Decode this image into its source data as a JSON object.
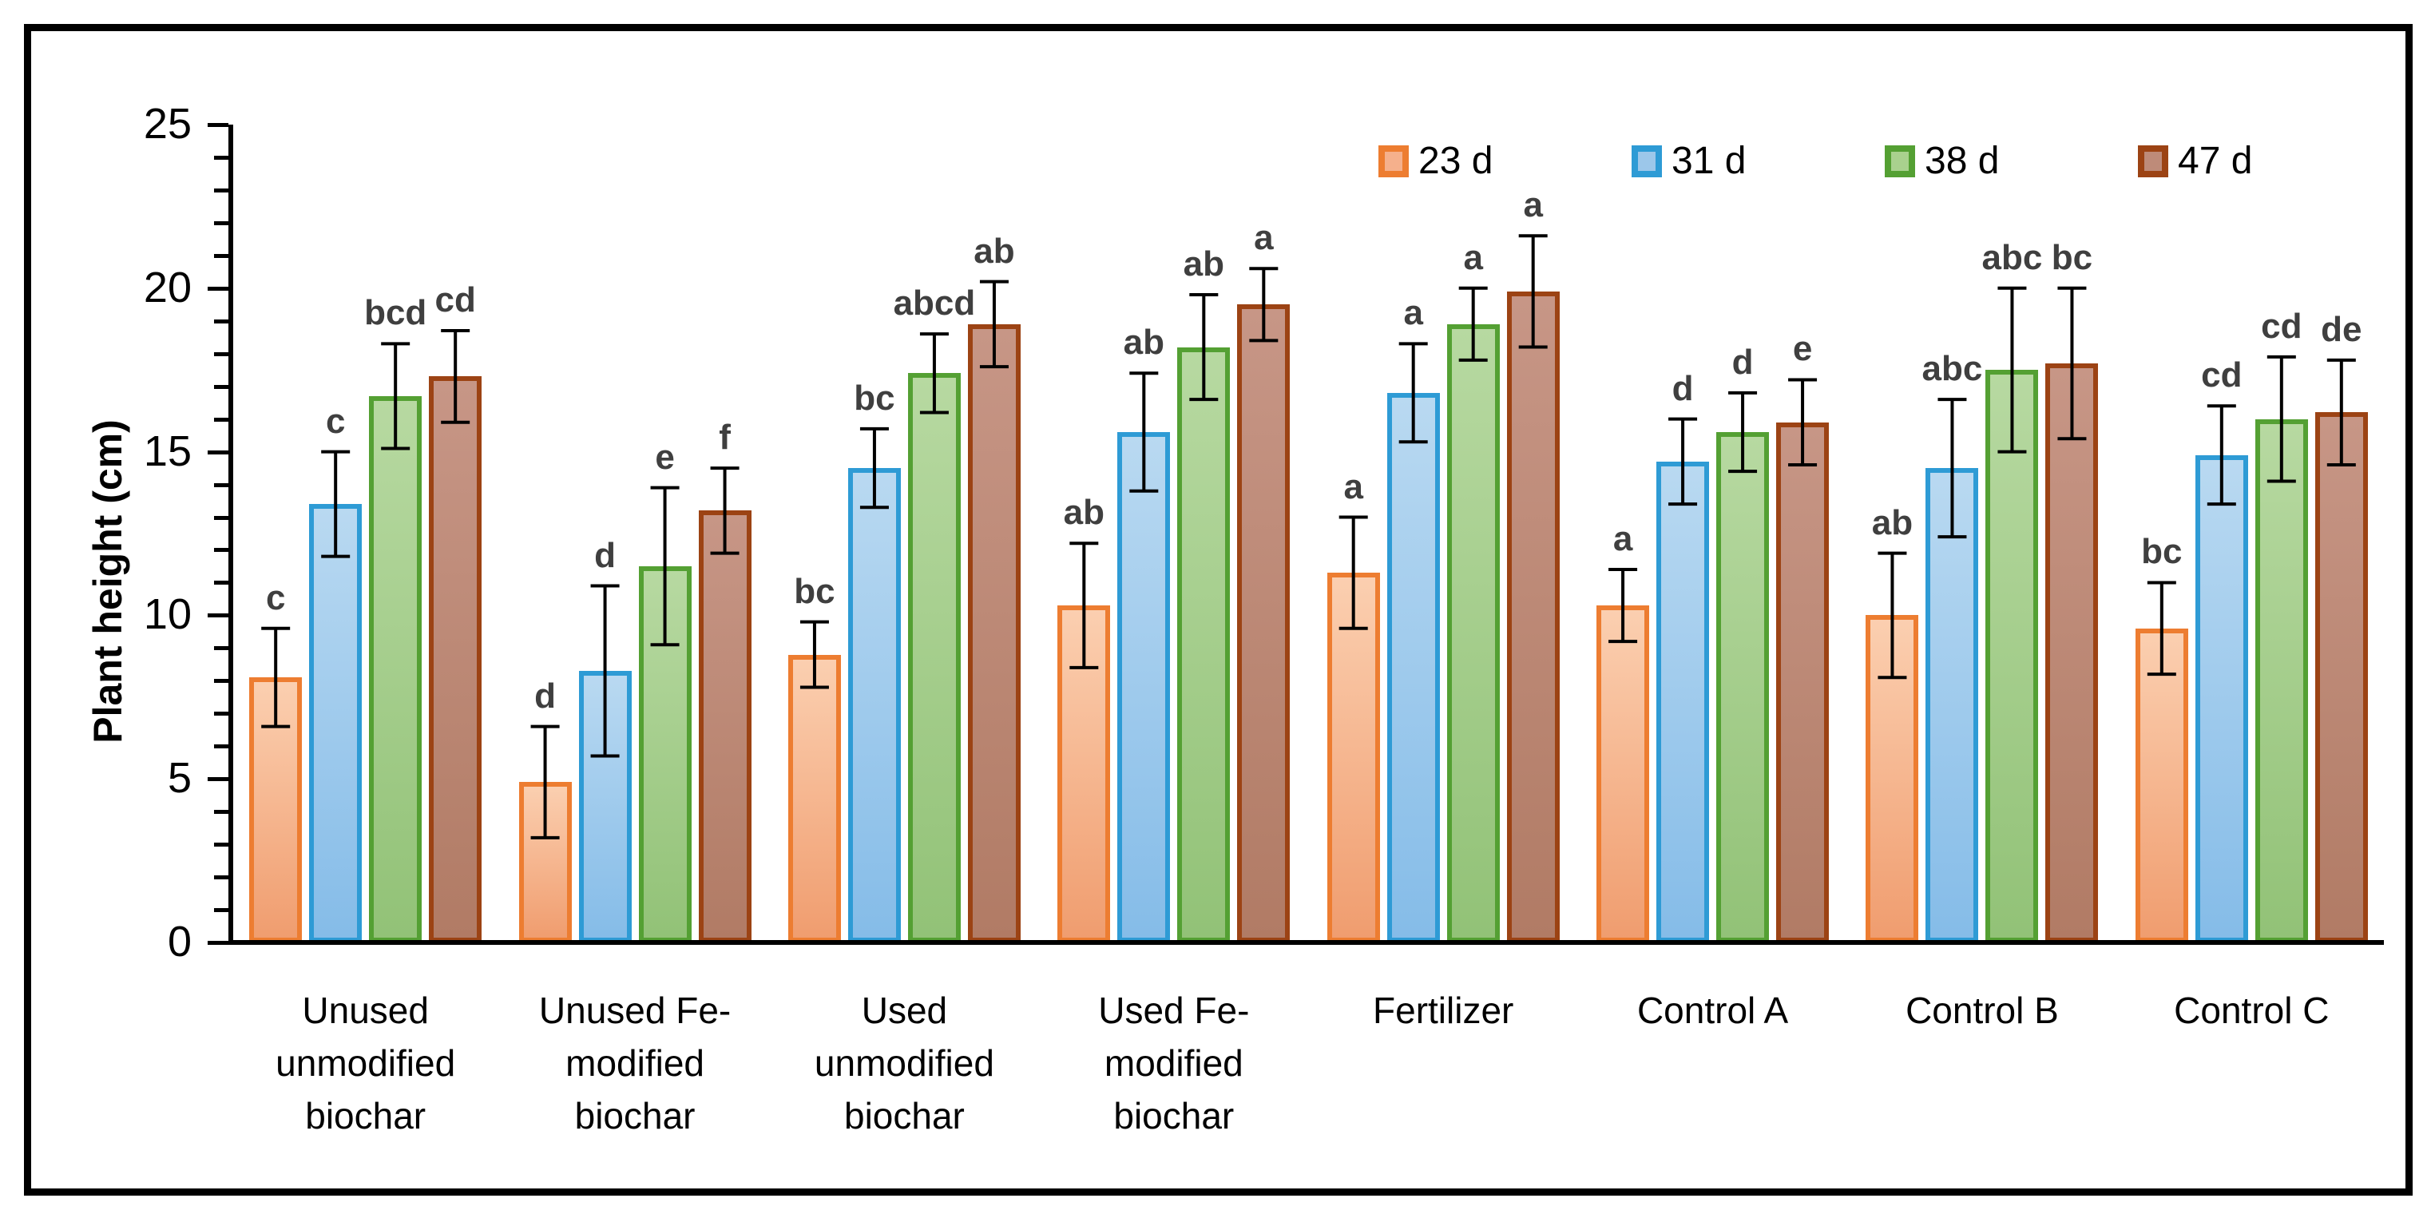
{
  "axis": {
    "y_title": "Plant height (cm)",
    "y_tick_labels": [
      "0",
      "5",
      "10",
      "15",
      "20",
      "25"
    ]
  },
  "legend": {
    "items": [
      {
        "label": "23 d",
        "fill": "#F5B08C",
        "border": "#ED7D31"
      },
      {
        "label": "31 d",
        "fill": "#9CC7EA",
        "border": "#2E9BD5"
      },
      {
        "label": "38 d",
        "fill": "#A9D18E",
        "border": "#54A033"
      },
      {
        "label": "47 d",
        "fill": "#BE8B79",
        "border": "#9C4314"
      }
    ]
  },
  "chart_data": {
    "type": "bar",
    "title": "",
    "xlabel": "",
    "ylabel": "Plant height (cm)",
    "ylim": [
      0,
      25
    ],
    "yticks": [
      0,
      5,
      10,
      15,
      20,
      25
    ],
    "minor_tick_step": 1,
    "grid": false,
    "legend_position": "top",
    "error_bars": true,
    "categories": [
      "Unused unmodified biochar",
      "Unused Fe-modified biochar",
      "Used unmodified biochar",
      "Used Fe-modified biochar",
      "Fertilizer",
      "Control A",
      "Control B",
      "Control C"
    ],
    "category_display": [
      "Unused\nunmodified\nbiochar",
      "Unused Fe-\nmodified\nbiochar",
      "Used\nunmodified\nbiochar",
      "Used Fe-\nmodified\nbiochar",
      "Fertilizer",
      "Control A",
      "Control B",
      "Control C"
    ],
    "series": [
      {
        "name": "23 d",
        "fill_top": "#FBCFB0",
        "fill_bottom": "#F09D6F",
        "border": "#ED7D31",
        "values": [
          8.1,
          4.9,
          8.8,
          10.3,
          11.3,
          10.3,
          10.0,
          9.6
        ],
        "errors": [
          1.5,
          1.7,
          1.0,
          1.9,
          1.7,
          1.1,
          1.9,
          1.4
        ],
        "letters": [
          "c",
          "d",
          "bc",
          "ab",
          "a",
          "a",
          "ab",
          "bc"
        ]
      },
      {
        "name": "31 d",
        "fill_top": "#B9D9F1",
        "fill_bottom": "#85BCE8",
        "border": "#2E9BD5",
        "values": [
          13.4,
          8.3,
          14.5,
          15.6,
          16.8,
          14.7,
          14.5,
          14.9
        ],
        "errors": [
          1.6,
          2.6,
          1.2,
          1.8,
          1.5,
          1.3,
          2.1,
          1.5
        ],
        "letters": [
          "c",
          "d",
          "bc",
          "ab",
          "a",
          "d",
          "abc",
          "cd"
        ]
      },
      {
        "name": "38 d",
        "fill_top": "#B7D9A1",
        "fill_bottom": "#92C277",
        "border": "#54A033",
        "values": [
          16.7,
          11.5,
          17.4,
          18.2,
          18.9,
          15.6,
          17.5,
          16.0
        ],
        "errors": [
          1.6,
          2.4,
          1.2,
          1.6,
          1.1,
          1.2,
          2.5,
          1.9
        ],
        "letters": [
          "bcd",
          "e",
          "abcd",
          "ab",
          "a",
          "d",
          "abc",
          "cd"
        ]
      },
      {
        "name": "47 d",
        "fill_top": "#C79686",
        "fill_bottom": "#B17B65",
        "border": "#9C4314",
        "values": [
          17.3,
          13.2,
          18.9,
          19.5,
          19.9,
          15.9,
          17.7,
          16.2
        ],
        "errors": [
          1.4,
          1.3,
          1.3,
          1.1,
          1.7,
          1.3,
          2.3,
          1.6
        ],
        "letters": [
          "cd",
          "f",
          "ab",
          "a",
          "a",
          "e",
          "bc",
          "de"
        ]
      }
    ]
  }
}
